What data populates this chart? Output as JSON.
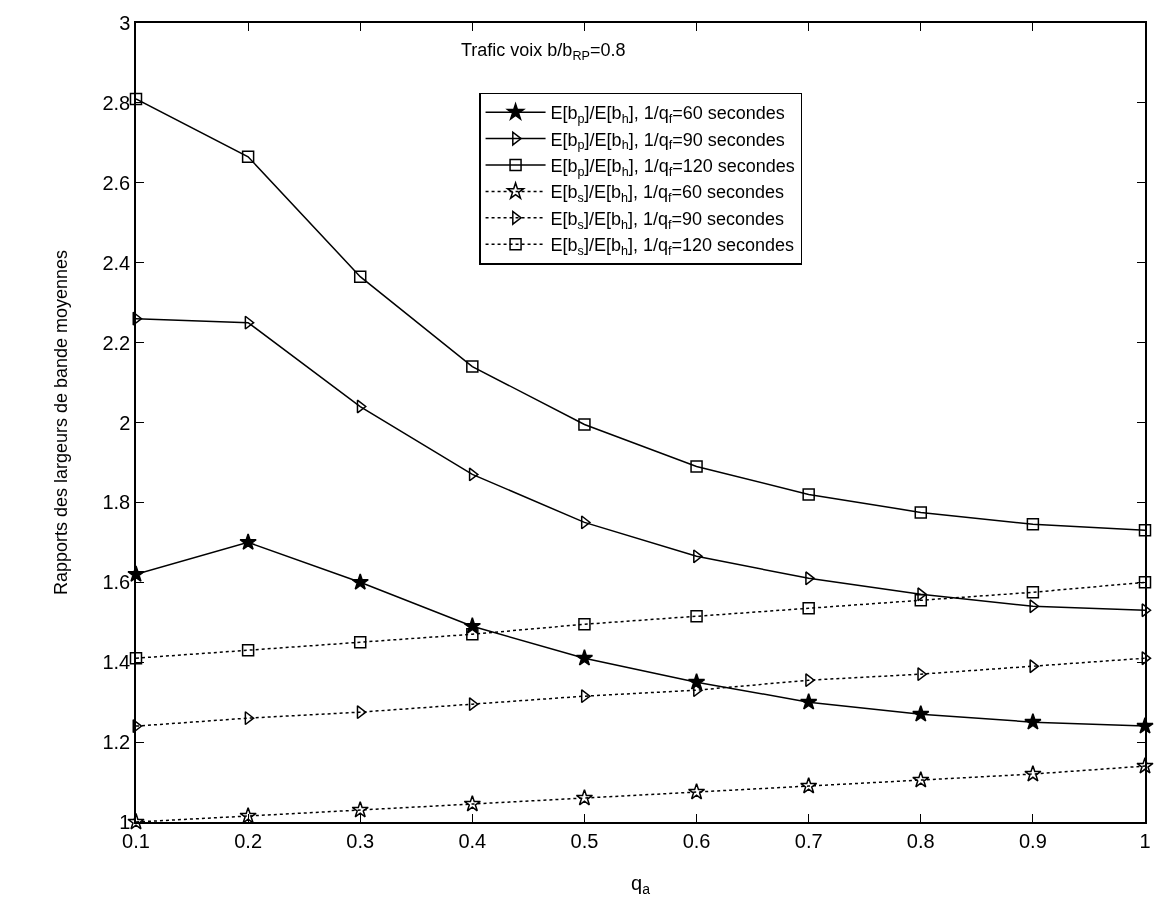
{
  "chart_data": {
    "type": "line",
    "xlabel": "q$_{a}$",
    "ylabel": "Rapports des largeurs de bande moyennes",
    "annotations": [
      "Trafic voix b/b$_{RP}$=0.8"
    ],
    "x": [
      0.1,
      0.2,
      0.3,
      0.4,
      0.5,
      0.6,
      0.7,
      0.8,
      0.9,
      1.0
    ],
    "xlim": [
      0.1,
      1
    ],
    "xticks": [
      0.1,
      0.2,
      0.3,
      0.4,
      0.5,
      0.6,
      0.7,
      0.8,
      0.9,
      1
    ],
    "ylim": [
      1,
      3
    ],
    "yticks": [
      1,
      1.2,
      1.4,
      1.6,
      1.8,
      2,
      2.2,
      2.4,
      2.6,
      2.8,
      3
    ],
    "legend": "top right",
    "series": [
      {
        "name": "E[b$_{p}$]/E[b$_{h}$], 1/q$_{f}$=60 secondes",
        "color": "#000000",
        "marker": "star",
        "line_style": "solid",
        "values": [
          1.62,
          1.7,
          1.6,
          1.49,
          1.41,
          1.35,
          1.3,
          1.27,
          1.25,
          1.24
        ]
      },
      {
        "name": "E[b$_{p}$]/E[b$_{h}$], 1/q$_{f}$=90 secondes",
        "color": "#000000",
        "marker": "triangle",
        "line_style": "solid",
        "values": [
          2.26,
          2.25,
          2.04,
          1.87,
          1.75,
          1.665,
          1.61,
          1.57,
          1.54,
          1.53
        ]
      },
      {
        "name": "E[b$_{p}$]/E[b$_{h}$], 1/q$_{f}$=120 secondes",
        "color": "#000000",
        "marker": "square",
        "line_style": "solid",
        "values": [
          2.81,
          2.665,
          2.365,
          2.14,
          1.995,
          1.89,
          1.82,
          1.775,
          1.745,
          1.73
        ]
      },
      {
        "name": "E[b$_{s}$]/E[b$_{h}$], 1/q$_{f}$=60 secondes",
        "color": "#000000",
        "marker": "star",
        "line_style": "dotted",
        "values": [
          1.0,
          1.015,
          1.03,
          1.045,
          1.06,
          1.075,
          1.09,
          1.105,
          1.12,
          1.14
        ]
      },
      {
        "name": "E[b$_{s}$]/E[b$_{h}$], 1/q$_{f}$=90 secondes",
        "color": "#000000",
        "marker": "triangle",
        "line_style": "dotted",
        "values": [
          1.24,
          1.26,
          1.275,
          1.295,
          1.315,
          1.33,
          1.355,
          1.37,
          1.39,
          1.41
        ]
      },
      {
        "name": "E[b$_{s}$]/E[b$_{h}$], 1/q$_{f}$=120 secondes",
        "color": "#000000",
        "marker": "square",
        "line_style": "dotted",
        "values": [
          1.41,
          1.43,
          1.45,
          1.47,
          1.495,
          1.515,
          1.535,
          1.555,
          1.575,
          1.6
        ]
      }
    ]
  }
}
